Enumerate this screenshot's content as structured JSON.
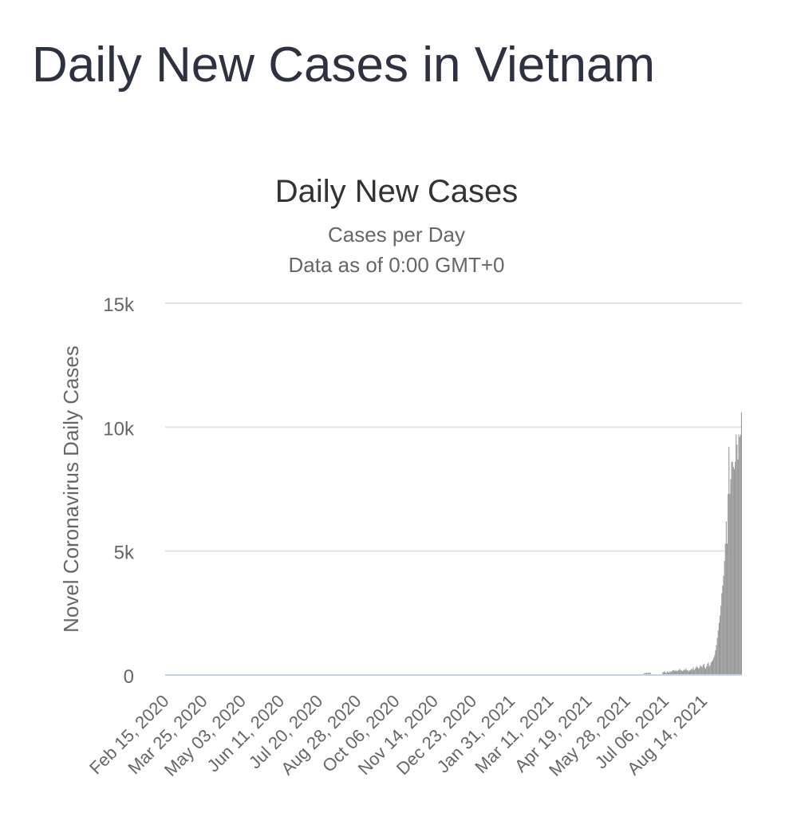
{
  "page": {
    "title": "Daily New Cases in Vietnam"
  },
  "colors": {
    "bar": "#999999",
    "grid": "#e3e3e3",
    "baseline": "#c7d1ec",
    "title": "#2e3140",
    "text": "#666666"
  },
  "chart_data": {
    "type": "bar",
    "title": "Daily New Cases",
    "subtitle_lines": [
      "Cases per Day",
      "Data as of 0:00 GMT+0"
    ],
    "xlabel": "",
    "ylabel": "Novel Coronavirus Daily Cases",
    "ylim": [
      0,
      15000
    ],
    "yticks": [
      0,
      5000,
      10000,
      15000
    ],
    "ytick_labels": [
      "0",
      "5k",
      "10k",
      "15k"
    ],
    "xtick_labels": [
      "Feb 15, 2020",
      "Mar 25, 2020",
      "May 03, 2020",
      "Jun 11, 2020",
      "Jul 20, 2020",
      "Aug 28, 2020",
      "Oct 06, 2020",
      "Nov 14, 2020",
      "Dec 23, 2020",
      "Jan 31, 2021",
      "Mar 11, 2021",
      "Apr 19, 2021",
      "May 28, 2021",
      "Jul 06, 2021",
      "Aug 14, 2021"
    ],
    "grid": true,
    "legend": "none",
    "series": [
      {
        "x_start": "2020-02-15",
        "values": [
          0,
          0,
          0,
          0,
          0,
          0,
          0,
          0,
          0,
          0,
          0,
          0,
          0,
          0,
          0,
          0,
          0,
          0,
          0,
          0,
          0,
          0,
          0,
          0,
          0,
          0,
          0,
          0,
          0,
          0,
          0,
          0,
          0,
          0,
          0,
          0,
          0,
          0,
          0,
          0,
          0,
          0,
          0,
          0,
          0,
          0,
          0,
          0,
          0,
          0,
          0,
          0,
          0,
          0,
          0,
          0,
          0,
          0,
          0,
          0,
          0,
          0,
          0,
          0,
          0,
          0,
          0,
          0,
          0,
          0,
          0,
          0,
          0,
          0,
          0,
          0,
          0,
          0,
          0,
          0,
          0,
          0,
          0,
          0,
          0,
          0,
          0,
          0,
          0,
          0,
          0,
          0,
          0,
          0,
          0,
          0,
          0,
          0,
          0,
          0,
          0,
          0,
          0,
          0,
          0,
          0,
          0,
          0,
          0,
          0,
          0,
          0,
          0,
          0,
          0,
          0,
          0,
          0,
          0,
          0,
          0,
          0,
          0,
          0,
          0,
          0,
          0,
          0,
          0,
          0,
          0,
          0,
          0,
          0,
          0,
          0,
          0,
          0,
          0,
          0,
          0,
          0,
          0,
          0,
          0,
          0,
          0,
          0,
          0,
          0,
          0,
          0,
          0,
          0,
          0,
          0,
          0,
          0,
          0,
          0,
          0,
          0,
          0,
          0,
          0,
          0,
          0,
          0,
          0,
          0,
          0,
          0,
          0,
          0,
          0,
          0,
          0,
          0,
          0,
          0,
          0,
          0,
          0,
          0,
          0,
          0,
          0,
          0,
          0,
          0,
          0,
          0,
          0,
          0,
          0,
          0,
          0,
          0,
          0,
          0,
          0,
          0,
          0,
          0,
          0,
          0,
          0,
          0,
          0,
          0,
          0,
          0,
          0,
          0,
          0,
          0,
          0,
          0,
          0,
          0,
          0,
          0,
          0,
          0,
          0,
          0,
          0,
          0,
          0,
          0,
          0,
          0,
          0,
          0,
          0,
          0,
          0,
          0,
          0,
          0,
          0,
          0,
          0,
          0,
          0,
          0,
          0,
          0,
          0,
          0,
          0,
          0,
          0,
          0,
          0,
          0,
          0,
          0,
          0,
          0,
          0,
          0,
          0,
          0,
          0,
          0,
          0,
          0,
          0,
          0,
          0,
          0,
          0,
          0,
          0,
          0,
          0,
          0,
          0,
          0,
          0,
          0,
          0,
          0,
          0,
          0,
          0,
          0,
          0,
          0,
          0,
          0,
          0,
          0,
          0,
          0,
          0,
          0,
          0,
          0,
          0,
          0,
          0,
          0,
          0,
          0,
          0,
          0,
          0,
          0,
          0,
          0,
          0,
          0,
          0,
          0,
          0,
          0,
          0,
          0,
          0,
          0,
          0,
          0,
          0,
          0,
          0,
          0,
          0,
          0,
          0,
          0,
          0,
          0,
          0,
          0,
          0,
          0,
          0,
          0,
          0,
          0,
          0,
          0,
          0,
          0,
          0,
          0,
          0,
          0,
          0,
          0,
          0,
          0,
          0,
          0,
          0,
          0,
          0,
          0,
          0,
          0,
          0,
          0,
          0,
          0,
          0,
          0,
          0,
          0,
          0,
          0,
          0,
          0,
          0,
          0,
          0,
          0,
          0,
          0,
          0,
          0,
          0,
          0,
          0,
          0,
          0,
          0,
          0,
          0,
          0,
          0,
          0,
          0,
          0,
          0,
          0,
          0,
          0,
          0,
          0,
          0,
          0,
          0,
          0,
          0,
          0,
          0,
          0,
          0,
          0,
          0,
          0,
          0,
          0,
          0,
          0,
          0,
          0,
          0,
          0,
          0,
          0,
          0,
          0,
          0,
          0,
          0,
          0,
          0,
          0,
          0,
          0,
          0,
          0,
          0,
          0,
          0,
          0,
          0,
          0,
          0,
          0,
          0,
          0,
          0,
          0,
          0,
          0,
          0,
          0,
          0,
          0,
          0,
          0,
          0,
          0,
          0,
          0,
          0,
          0,
          0,
          0,
          0,
          0,
          0,
          0,
          0,
          0,
          0,
          0,
          0,
          0,
          0,
          0,
          0,
          0,
          0,
          0,
          0,
          0,
          0,
          0,
          0,
          0,
          0,
          0,
          0,
          0,
          0,
          0,
          0,
          0,
          0,
          0,
          0,
          0,
          0,
          0,
          0,
          0,
          0,
          0,
          0,
          0,
          0,
          0,
          0,
          0,
          0,
          0,
          0,
          0,
          0,
          0,
          0,
          0,
          0,
          0,
          0,
          0,
          0,
          0,
          0,
          0,
          0,
          0,
          0,
          0,
          0,
          0,
          0,
          0,
          0,
          0,
          60,
          80,
          60,
          100,
          60,
          100,
          80,
          100,
          0,
          0,
          0,
          0,
          0,
          0,
          0,
          0,
          0,
          0,
          0,
          0,
          0,
          100,
          120,
          150,
          100,
          80,
          150,
          120,
          100,
          150,
          120,
          150,
          180,
          200,
          180,
          150,
          200,
          150,
          180,
          200,
          250,
          180,
          200,
          150,
          180,
          220,
          200,
          250,
          180,
          200,
          150,
          180,
          200,
          250,
          220,
          300,
          200,
          250,
          300,
          350,
          300,
          250,
          300,
          400,
          350,
          300,
          400,
          450,
          300,
          250,
          350,
          450,
          500,
          350,
          400,
          500,
          550,
          600,
          700,
          800,
          1000,
          1200,
          1500,
          1800,
          2100,
          2400,
          2800,
          3300,
          3600,
          4000,
          4600,
          5300,
          6200,
          5300,
          7300,
          9200,
          7300,
          7900,
          8600,
          8600,
          8400,
          8300,
          8600,
          9700,
          9300,
          8700,
          9700,
          9600,
          9700,
          10600
        ]
      }
    ]
  }
}
